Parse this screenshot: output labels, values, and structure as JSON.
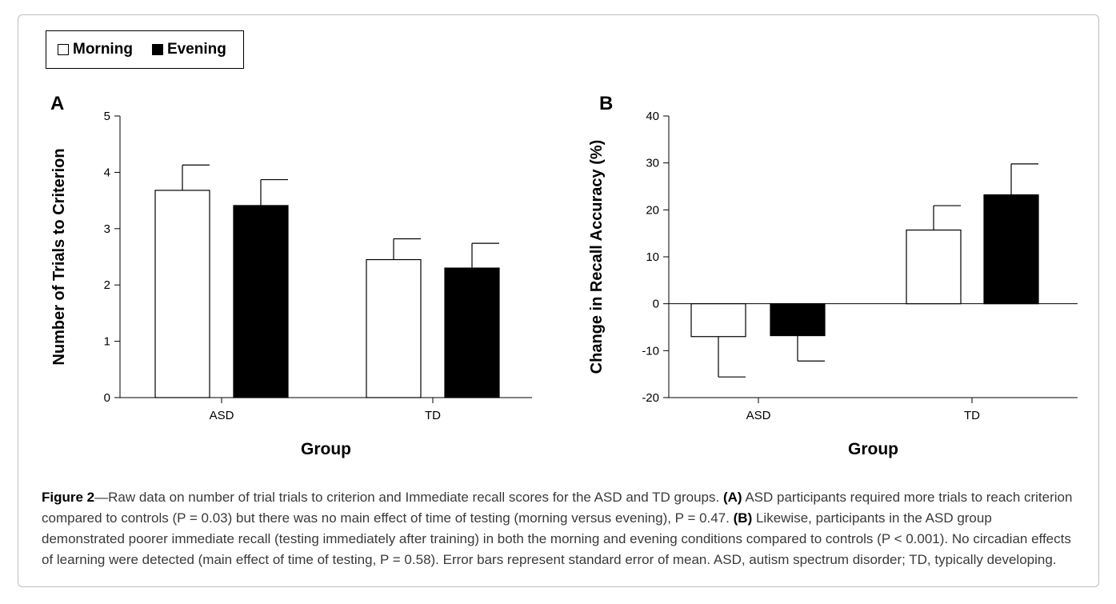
{
  "legend": [
    {
      "label": "Morning",
      "color": "#ffffff"
    },
    {
      "label": "Evening",
      "color": "#000000"
    }
  ],
  "chart_data": [
    {
      "panel": "A",
      "type": "bar",
      "categories": [
        "ASD",
        "TD"
      ],
      "series": [
        {
          "name": "Morning",
          "color": "#ffffff",
          "values": [
            3.68,
            2.45
          ],
          "errors": [
            0.45,
            0.37
          ]
        },
        {
          "name": "Evening",
          "color": "#000000",
          "values": [
            3.41,
            2.3
          ],
          "errors": [
            0.46,
            0.44
          ]
        }
      ],
      "xlabel": "Group",
      "ylabel": "Number of Trials to Criterion",
      "ylim": [
        0,
        5
      ],
      "yticks": [
        0,
        1,
        2,
        3,
        4,
        5
      ]
    },
    {
      "panel": "B",
      "type": "bar",
      "categories": [
        "ASD",
        "TD"
      ],
      "series": [
        {
          "name": "Morning",
          "color": "#ffffff",
          "values": [
            -7.0,
            15.7
          ],
          "errors": [
            8.6,
            5.2
          ]
        },
        {
          "name": "Evening",
          "color": "#000000",
          "values": [
            -6.8,
            23.2
          ],
          "errors": [
            5.4,
            6.6
          ]
        }
      ],
      "xlabel": "Group",
      "ylabel": "Change in Recall Accuracy (%)",
      "ylim": [
        -20,
        40
      ],
      "yticks": [
        -20,
        -10,
        0,
        10,
        20,
        30,
        40
      ]
    }
  ],
  "caption": {
    "figure_label": "Figure 2",
    "intro": "—Raw data on number of trial trials to criterion and Immediate recall scores for the ASD and TD groups. ",
    "a_label": "(A)",
    "a_text": " ASD participants required more trials to reach criterion compared to controls (P = 0.03) but there was no main effect of time of testing (morning versus evening), P = 0.47. ",
    "b_label": "(B)",
    "b_text": " Likewise, participants in the ASD group demonstrated poorer immediate recall (testing immediately after training) in both the morning and evening conditions compared to controls (P < 0.001). No circadian effects of learning were detected (main effect of time of testing, P = 0.58). Error bars represent standard error of mean. ASD, autism spectrum disorder; TD, typically developing."
  }
}
